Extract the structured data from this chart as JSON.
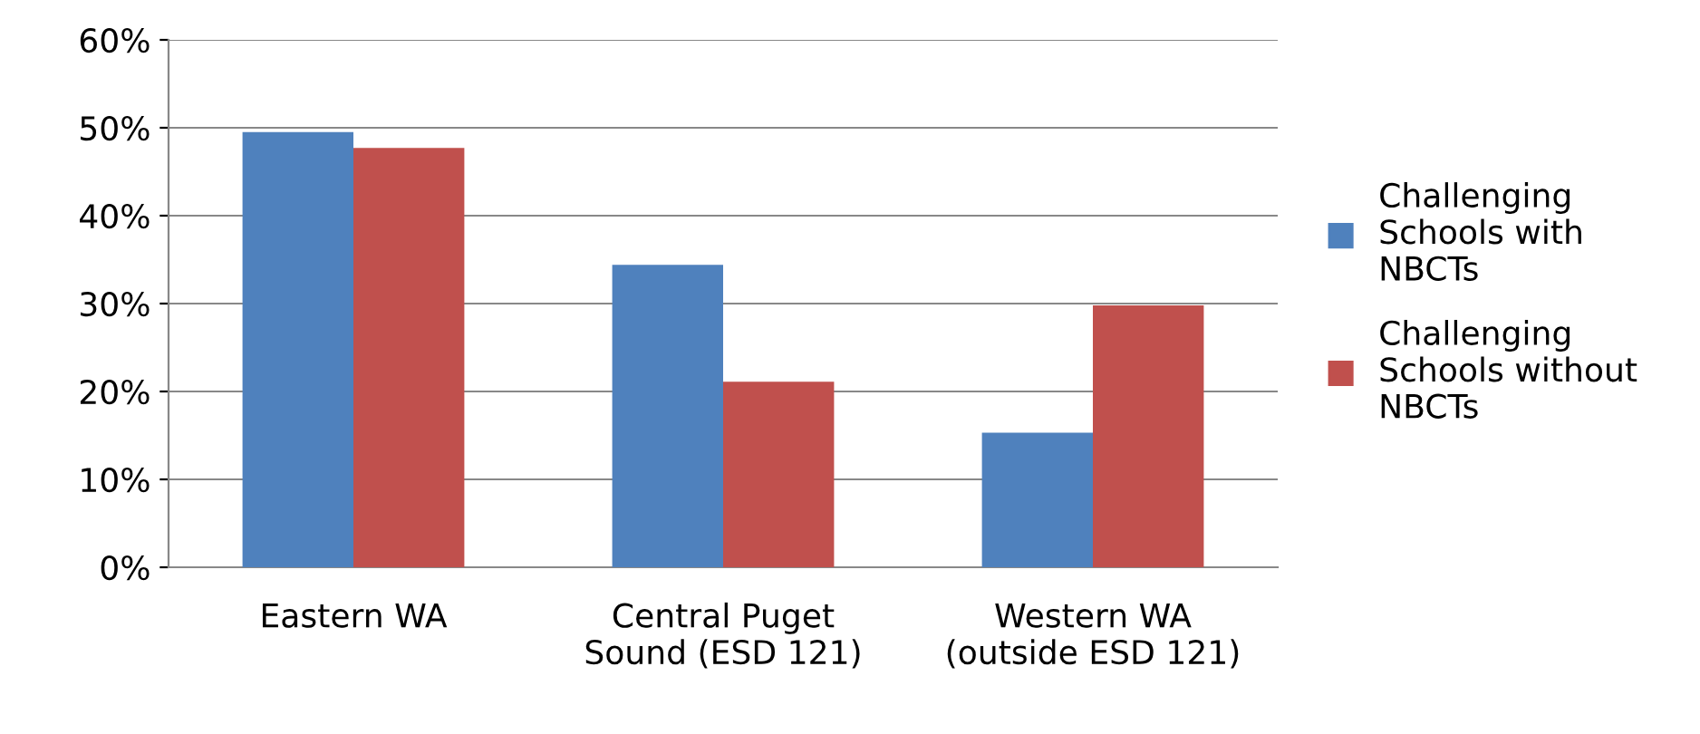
{
  "chart_data": {
    "type": "bar",
    "categories": [
      "Eastern WA",
      "Central Puget\nSound (ESD 121)",
      "Western WA\n(outside ESD 121)"
    ],
    "series": [
      {
        "name": "Challenging\nSchools with\nNBCTs",
        "color": "#4f81bd",
        "values": [
          0.495,
          0.344,
          0.153
        ]
      },
      {
        "name": "Challenging\nSchools without\nNBCTs",
        "color": "#c0504d",
        "values": [
          0.477,
          0.211,
          0.298
        ]
      }
    ],
    "ylim": [
      0,
      0.6
    ],
    "yticks": [
      {
        "value": 0,
        "label": "0%"
      },
      {
        "value": 0.1,
        "label": "10%"
      },
      {
        "value": 0.2,
        "label": "20%"
      },
      {
        "value": 0.3,
        "label": "30%"
      },
      {
        "value": 0.4,
        "label": "40%"
      },
      {
        "value": 0.5,
        "label": "50%"
      },
      {
        "value": 0.6,
        "label": "60%"
      }
    ],
    "grid": "y",
    "legend": "right"
  }
}
